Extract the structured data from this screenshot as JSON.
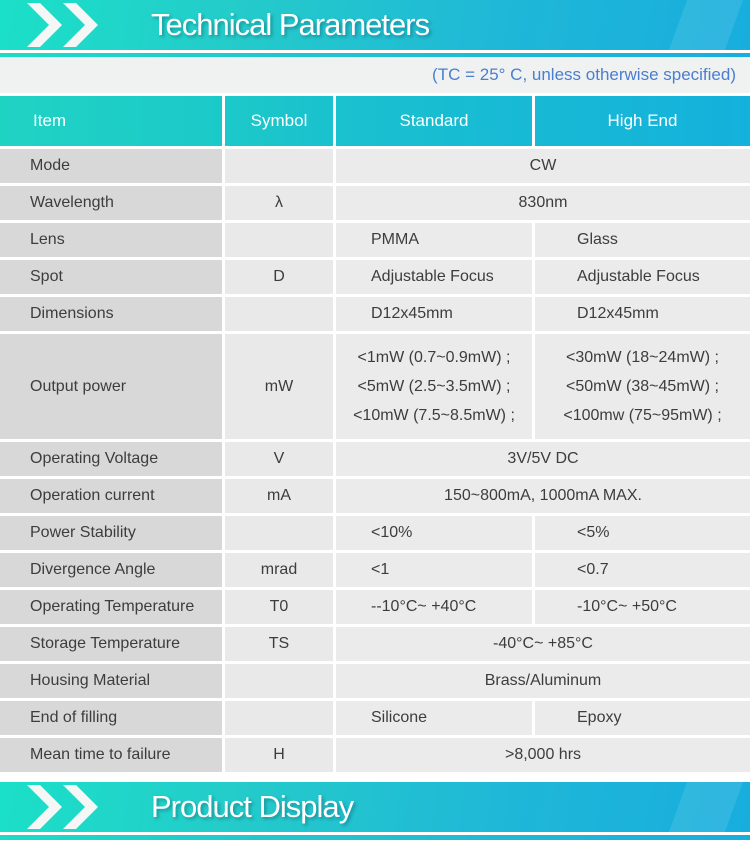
{
  "sections": {
    "top_banner_title": "Technical Parameters",
    "bottom_banner_title": "Product Display"
  },
  "note_text": "(TC = 25° C, unless otherwise specified)",
  "table": {
    "columns": [
      "Item",
      "Symbol",
      "Standard",
      "High End"
    ],
    "rows": [
      {
        "item": "Mode",
        "symbol": "",
        "merged": true,
        "value": "CW"
      },
      {
        "item": "Wavelength",
        "symbol": "λ",
        "merged": true,
        "value": "830nm"
      },
      {
        "item": "Lens",
        "symbol": "",
        "standard": "PMMA",
        "high_end": "Glass"
      },
      {
        "item": "Spot",
        "symbol": "D",
        "standard": "Adjustable Focus",
        "high_end": "Adjustable Focus"
      },
      {
        "item": "Dimensions",
        "symbol": "",
        "standard": "D12x45mm",
        "high_end": "D12x45mm"
      },
      {
        "item": "Output power",
        "symbol": "mW",
        "standard_lines": [
          "<1mW (0.7~0.9mW) ;",
          "<5mW (2.5~3.5mW) ;",
          "<10mW (7.5~8.5mW) ;"
        ],
        "high_end_lines": [
          "<30mW (18~24mW) ;",
          "<50mW (38~45mW) ;",
          "<100mw (75~95mW) ;"
        ]
      },
      {
        "item": "Operating Voltage",
        "symbol": "V",
        "merged": true,
        "value": "3V/5V DC"
      },
      {
        "item": "Operation current",
        "symbol": "mA",
        "merged": true,
        "value": "150~800mA, 1000mA MAX."
      },
      {
        "item": "Power Stability",
        "symbol": "",
        "standard": "<10%",
        "high_end": "<5%"
      },
      {
        "item": "Divergence Angle",
        "symbol": "mrad",
        "standard": "<1",
        "high_end": "<0.7"
      },
      {
        "item": "Operating Temperature",
        "symbol": "T0",
        "standard": "--10°C~ +40°C",
        "high_end": "-10°C~ +50°C"
      },
      {
        "item": "Storage Temperature",
        "symbol": "TS",
        "merged": true,
        "value": "-40°C~ +85°C"
      },
      {
        "item": "Housing Material",
        "symbol": "",
        "merged": true,
        "value": "Brass/Aluminum"
      },
      {
        "item": "End of filling",
        "symbol": "",
        "standard": "Silicone",
        "high_end": "Epoxy"
      },
      {
        "item": "Mean time to failure",
        "symbol": "H",
        "merged": true,
        "value": ">8,000 hrs"
      }
    ]
  },
  "colors": {
    "banner_teal": "#1be0c8",
    "banner_blue": "#18addd",
    "header_gradient_start": "#1fd3c3",
    "header_gradient_end": "#14b1dc",
    "note_text_color": "#4a7ed1",
    "item_cell_bg": "#d8d8d8",
    "value_cell_bg": "#ebebeb",
    "body_text_color": "#3d3d3d",
    "chevron_color": "#f4f7f6"
  }
}
